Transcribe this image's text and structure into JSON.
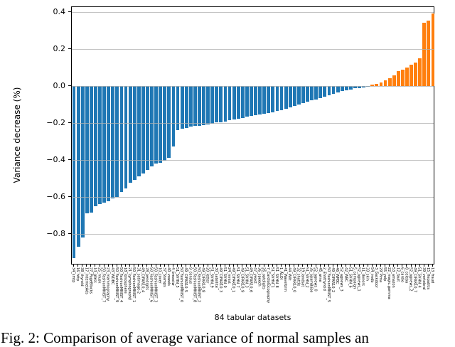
{
  "figure": {
    "caption": "Fig. 2: Comparison of average variance of normal samples an",
    "background": "#ffffff"
  },
  "chart_data": {
    "type": "bar",
    "title": "",
    "xlabel": "84 tabular datasets",
    "ylabel": "Variance decrease (%)",
    "ylim": [
      -0.97,
      0.425
    ],
    "grid": true,
    "grid_color": "#b0b0b0",
    "legend_position": "none",
    "positive_color": "#ff7f0e",
    "negative_color": "#1f77b4",
    "yticks": [
      0.4,
      0.2,
      0.0,
      -0.2,
      -0.4,
      -0.6,
      -0.8
    ],
    "ytick_labels": [
      "0.4",
      "0.2",
      "0.0",
      "−0.2",
      "−0.4",
      "−0.6",
      "−0.8"
    ],
    "categories": [
      "34_smtp",
      "16_http",
      "38_thyroid",
      "17_InternetAds",
      "27_PageBlocks",
      "14_glass",
      "25_musk",
      "50_FashionMNIST_7",
      "23_mammography",
      "43_WDBC",
      "50_FashionMNIST_9",
      "50_FashionMNIST_4",
      "18_Ionosphere",
      "21_Lymphography",
      "50_FashionMNIST_1",
      "31_satimage-2",
      "49_CIFAR10_4",
      "28_pendigits",
      "50_FashionMNIST_6",
      "50_FashionMNIST_3",
      "10_cover",
      "37_Stamps",
      "40_vowels",
      "4_breastw",
      "51_SVHN_5",
      "50_FashionMNIST_0",
      "49_CIFAR10_5",
      "9_census",
      "50_FashionMNIST_8",
      "50_FashionMNIST_2",
      "49_CIFAR10_8",
      "20_letter",
      "51_SVHN_9",
      "30_satellite",
      "49_CIFAR10_3",
      "51_SVHN_0",
      "24_mnist",
      "49_CIFAR10_1",
      "51_SVHN_7",
      "49_CIFAR10_9",
      "51_SVHN_3",
      "49_CIFAR10_6",
      "47_yeast",
      "36_speech",
      "26_optdigits",
      "7_Cardiotocography",
      "51_SVHN_1",
      "51_SVHN_8",
      "1_ALOI",
      "41_Waveform",
      "44_Wilt",
      "49_CIFAR10_0",
      "32_shuttle",
      "19_landsat",
      "51_SVHN_2",
      "35_SpamBase",
      "52_agnews_0",
      "45_wine",
      "2_annthyroid",
      "50_FashionMNIST_5",
      "49_CIFAR10_2",
      "46_WPBC",
      "52_agnews_3",
      "42_WBC",
      "51_SVHN_6",
      "5_campaign",
      "52_agnews_1",
      "11_donors",
      "33_skin",
      "54_imdb",
      "3_backdoor",
      "29_Pima",
      "55_yelp",
      "22_magic.gamma",
      "53_amazon",
      "12_fault",
      "6_cardio",
      "8_celeba",
      "52_agnews_2",
      "49_CIFAR10_7",
      "51_SVHN_4",
      "39_vertebral",
      "15_Hepatitis",
      "13_fraud"
    ],
    "values": [
      -0.93,
      -0.87,
      -0.82,
      -0.69,
      -0.685,
      -0.65,
      -0.64,
      -0.63,
      -0.625,
      -0.61,
      -0.6,
      -0.575,
      -0.555,
      -0.525,
      -0.51,
      -0.49,
      -0.475,
      -0.455,
      -0.435,
      -0.42,
      -0.415,
      -0.405,
      -0.39,
      -0.33,
      -0.24,
      -0.232,
      -0.228,
      -0.222,
      -0.218,
      -0.215,
      -0.212,
      -0.208,
      -0.204,
      -0.199,
      -0.196,
      -0.192,
      -0.188,
      -0.184,
      -0.179,
      -0.174,
      -0.168,
      -0.163,
      -0.159,
      -0.156,
      -0.152,
      -0.147,
      -0.142,
      -0.137,
      -0.131,
      -0.125,
      -0.116,
      -0.108,
      -0.101,
      -0.093,
      -0.087,
      -0.079,
      -0.073,
      -0.066,
      -0.058,
      -0.051,
      -0.042,
      -0.036,
      -0.028,
      -0.023,
      -0.019,
      -0.015,
      -0.013,
      -0.01,
      -0.006,
      0.005,
      0.01,
      0.016,
      0.03,
      0.042,
      0.056,
      0.08,
      0.088,
      0.1,
      0.113,
      0.126,
      0.15,
      0.34,
      0.352,
      0.39
    ]
  }
}
